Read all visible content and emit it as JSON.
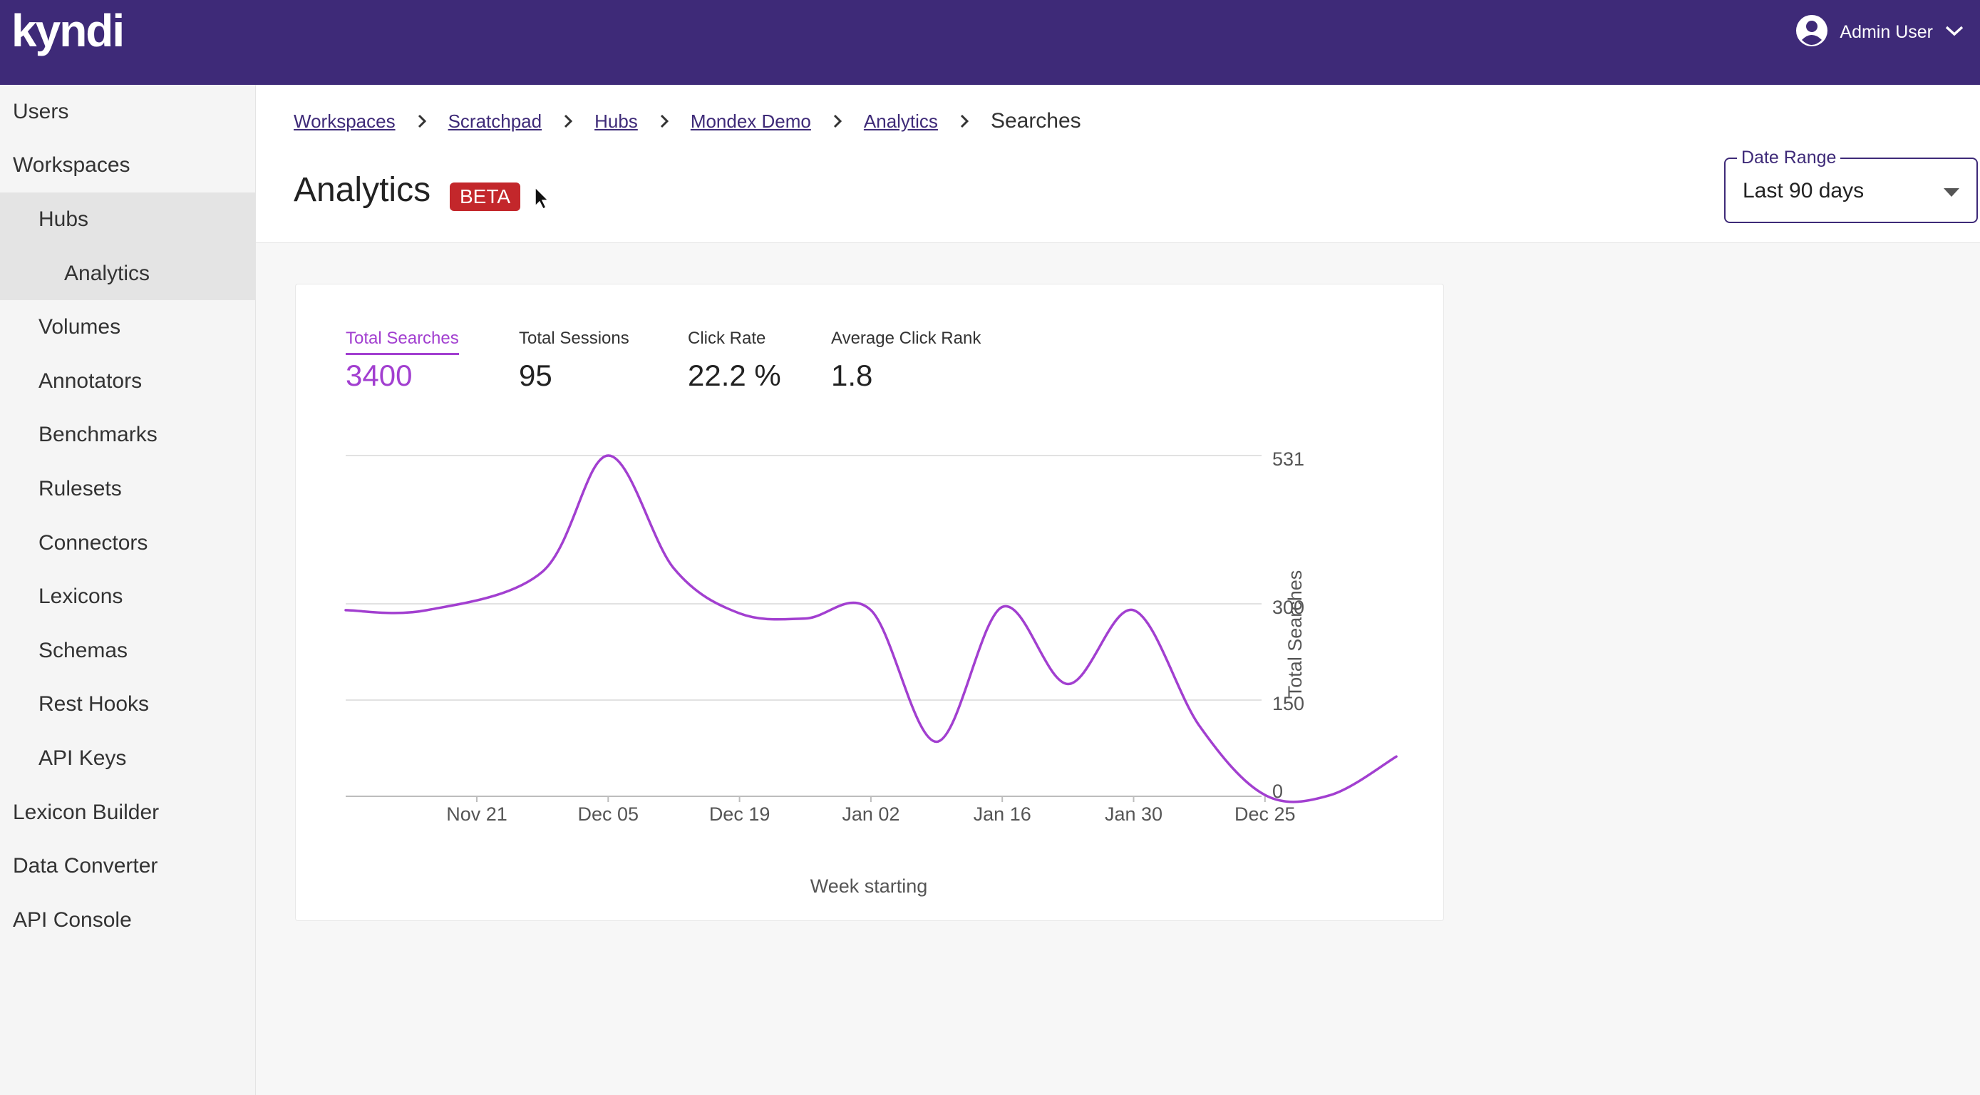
{
  "header": {
    "logo": "kyndi",
    "user_name": "Admin User",
    "user_icon": "account-circle-icon",
    "menu_icon": "chevron-down-icon",
    "brand_color": "#3e2a78"
  },
  "sidebar": {
    "items": [
      {
        "label": "Users",
        "level": 0
      },
      {
        "label": "Workspaces",
        "level": 0
      },
      {
        "label": "Hubs",
        "level": 1,
        "selected": true
      },
      {
        "label": "Analytics",
        "level": 2,
        "selected": true
      },
      {
        "label": "Volumes",
        "level": 1
      },
      {
        "label": "Annotators",
        "level": 1
      },
      {
        "label": "Benchmarks",
        "level": 1
      },
      {
        "label": "Rulesets",
        "level": 1
      },
      {
        "label": "Connectors",
        "level": 1
      },
      {
        "label": "Lexicons",
        "level": 1
      },
      {
        "label": "Schemas",
        "level": 1
      },
      {
        "label": "Rest Hooks",
        "level": 1
      },
      {
        "label": "API Keys",
        "level": 1
      },
      {
        "label": "Lexicon Builder",
        "level": 0
      },
      {
        "label": "Data Converter",
        "level": 0
      },
      {
        "label": "API Console",
        "level": 0
      }
    ]
  },
  "breadcrumb": {
    "links": [
      "Workspaces",
      "Scratchpad",
      "Hubs",
      "Mondex Demo",
      "Analytics"
    ],
    "current": "Searches",
    "separator_icon": "chevron-right-icon"
  },
  "page": {
    "title": "Analytics",
    "badge": "BETA",
    "badge_color": "#c3272b"
  },
  "date_range": {
    "label": "Date Range",
    "value": "Last 90 days",
    "caret_icon": "caret-down-icon"
  },
  "metrics": [
    {
      "label": "Total Searches",
      "value": "3400",
      "active": true
    },
    {
      "label": "Total Sessions",
      "value": "95"
    },
    {
      "label": "Click Rate",
      "value": "22.2 %"
    },
    {
      "label": "Average Click Rank",
      "value": "1.8"
    }
  ],
  "chart_data": {
    "type": "line",
    "title": "",
    "xlabel": "Week starting",
    "ylabel": "Total Searches",
    "line_color": "#a23fd0",
    "x_tick_labels": [
      "Nov 21",
      "Dec 05",
      "Dec 19",
      "Jan 02",
      "Jan 16",
      "Jan 30",
      "Dec 25"
    ],
    "y_tick_labels": [
      "531",
      "300",
      "150",
      "0"
    ],
    "y_ticks": [
      531,
      300,
      150,
      0
    ],
    "ylim": [
      0,
      531
    ],
    "gridlines": true,
    "y_axis_position": "right",
    "series": [
      {
        "x": [
          0,
          0.5,
          1,
          1.5,
          2,
          2.5,
          3,
          3.5,
          4,
          4.5,
          5,
          5.5,
          6,
          6.5,
          7
        ],
        "values": [
          290,
          350,
          531,
          355,
          285,
          277,
          290,
          85,
          295,
          175,
          290,
          110,
          2,
          2,
          62
        ]
      }
    ]
  }
}
